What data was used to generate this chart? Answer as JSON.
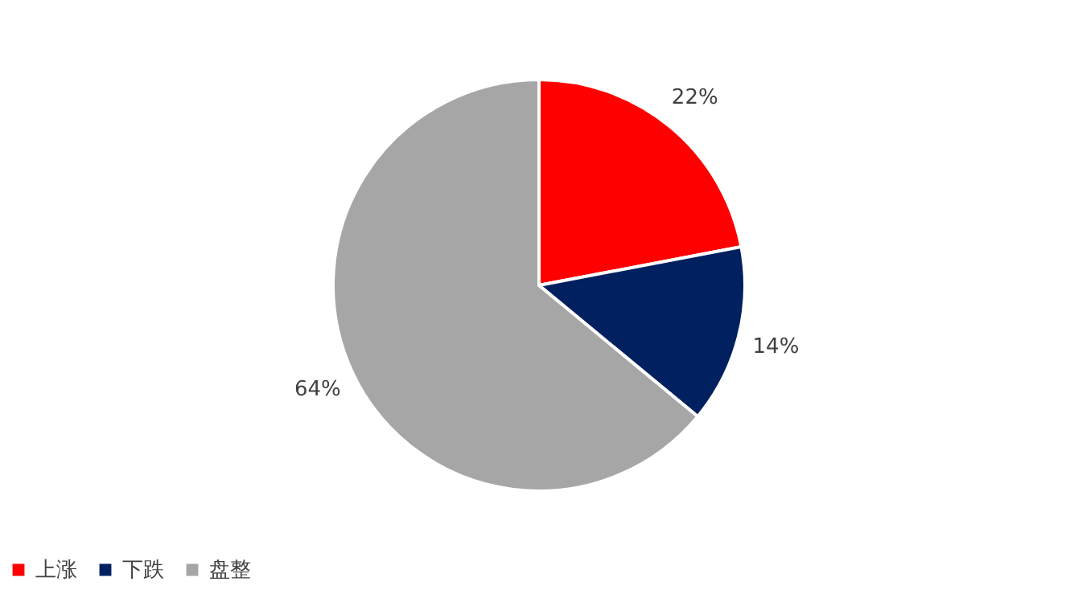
{
  "chart_data": {
    "type": "pie",
    "categories": [
      "上涨",
      "下跌",
      "盘整"
    ],
    "values": [
      22,
      14,
      64
    ],
    "colors": [
      "#ff0000",
      "#002060",
      "#a6a6a6"
    ],
    "value_labels": [
      "22%",
      "14%",
      "64%"
    ],
    "legend": "bottom"
  }
}
